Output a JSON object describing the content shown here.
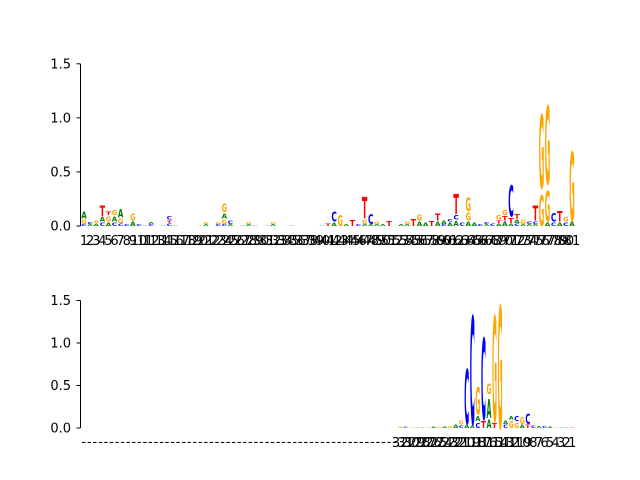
{
  "colors": {
    "A": "#008000",
    "C": "#0000ff",
    "G": "#ffa500",
    "T": "#ff0000",
    "axis": "#000000"
  },
  "chart_data": [
    {
      "type": "sequence-logo",
      "title": "",
      "xlabel": "",
      "ylabel": "",
      "ylim": [
        0,
        1.6
      ],
      "yticks": [
        0.0,
        0.5,
        1.0,
        1.5
      ],
      "ytick_labels": [
        "0.0",
        "0.5",
        "1.0",
        "1.5"
      ],
      "positions": [
        "1",
        "2",
        "3",
        "4",
        "5",
        "6",
        "7",
        "8",
        "9",
        "10",
        "11",
        "12",
        "13",
        "14",
        "15",
        "16",
        "17",
        "18",
        "19",
        "20",
        "21",
        "22",
        "23",
        "24",
        "25",
        "26",
        "27",
        "28",
        "29",
        "30",
        "31",
        "32",
        "33",
        "34",
        "35",
        "36",
        "37",
        "38",
        "39",
        "40",
        "41",
        "42",
        "43",
        "44",
        "45",
        "46",
        "47",
        "48",
        "49",
        "50",
        "51",
        "52",
        "53",
        "54",
        "55",
        "56",
        "57",
        "58",
        "59",
        "60",
        "61",
        "62",
        "63",
        "64",
        "65",
        "66",
        "67",
        "68",
        "69",
        "70",
        "71",
        "72",
        "73",
        "74",
        "75",
        "76",
        "77",
        "78",
        "79",
        "80",
        "81"
      ],
      "stacks": [
        [
          [
            "C",
            0.02
          ],
          [
            "G",
            0.05
          ],
          [
            "A",
            0.08
          ]
        ],
        [
          [
            "A",
            0.02
          ],
          [
            "C",
            0.02
          ]
        ],
        [
          [
            "A",
            0.03
          ],
          [
            "G",
            0.03
          ]
        ],
        [
          [
            "C",
            0.04
          ],
          [
            "A",
            0.05
          ],
          [
            "T",
            0.13
          ]
        ],
        [
          [
            "A",
            0.04
          ],
          [
            "G",
            0.06
          ],
          [
            "T",
            0.04
          ]
        ],
        [
          [
            "C",
            0.04
          ],
          [
            "A",
            0.06
          ],
          [
            "G",
            0.06
          ]
        ],
        [
          [
            "C",
            0.03
          ],
          [
            "G",
            0.05
          ],
          [
            "A",
            0.1
          ]
        ],
        [
          [
            "C",
            0.02
          ]
        ],
        [
          [
            "A",
            0.05
          ],
          [
            "G",
            0.08
          ]
        ],
        [
          [
            "C",
            0.02
          ]
        ],
        [
          [
            "A",
            0.01
          ]
        ],
        [
          [
            "C",
            0.02
          ],
          [
            "A",
            0.02
          ]
        ],
        [],
        [
          [
            "A",
            0.01
          ]
        ],
        [
          [
            "C",
            0.03
          ],
          [
            "T",
            0.03
          ],
          [
            "C",
            0.04
          ]
        ],
        [
          [
            "A",
            0.01
          ]
        ],
        [],
        [],
        [],
        [
          [
            "G",
            0.01
          ]
        ],
        [
          [
            "A",
            0.02
          ],
          [
            "G",
            0.02
          ]
        ],
        [],
        [
          [
            "C",
            0.02
          ],
          [
            "G",
            0.02
          ]
        ],
        [
          [
            "C",
            0.02
          ],
          [
            "G",
            0.05
          ],
          [
            "A",
            0.06
          ],
          [
            "G",
            0.1
          ]
        ],
        [
          [
            "A",
            0.02
          ],
          [
            "C",
            0.04
          ]
        ],
        [],
        [
          [
            "A",
            0.01
          ]
        ],
        [
          [
            "A",
            0.02
          ],
          [
            "G",
            0.02
          ]
        ],
        [
          [
            "C",
            0.01
          ]
        ],
        [],
        [
          [
            "A",
            0.01
          ]
        ],
        [
          [
            "A",
            0.02
          ],
          [
            "G",
            0.02
          ]
        ],
        [],
        [],
        [
          [
            "A",
            0.01
          ]
        ],
        [],
        [],
        [],
        [],
        [
          [
            "A",
            0.01
          ]
        ],
        [
          [
            "T",
            0.03
          ]
        ],
        [
          [
            "A",
            0.04
          ],
          [
            "C",
            0.11
          ]
        ],
        [
          [
            "G",
            0.13
          ]
        ],
        [
          [
            "A",
            0.02
          ]
        ],
        [
          [
            "T",
            0.07
          ]
        ],
        [
          [
            "C",
            0.02
          ]
        ],
        [
          [
            "A",
            0.02
          ],
          [
            "G",
            0.05
          ],
          [
            "T",
            0.25
          ]
        ],
        [
          [
            "A",
            0.02
          ],
          [
            "C",
            0.11
          ]
        ],
        [
          [
            "A",
            0.02
          ],
          [
            "G",
            0.03
          ]
        ],
        [
          [
            "A",
            0.02
          ]
        ],
        [
          [
            "T",
            0.06
          ]
        ],
        [],
        [
          [
            "A",
            0.02
          ]
        ],
        [
          [
            "A",
            0.02
          ],
          [
            "G",
            0.03
          ]
        ],
        [
          [
            "T",
            0.08
          ]
        ],
        [
          [
            "A",
            0.05
          ],
          [
            "G",
            0.07
          ]
        ],
        [
          [
            "A",
            0.04
          ]
        ],
        [
          [
            "T",
            0.06
          ]
        ],
        [
          [
            "A",
            0.05
          ],
          [
            "T",
            0.08
          ]
        ],
        [
          [
            "C",
            0.02
          ],
          [
            "A",
            0.04
          ]
        ],
        [
          [
            "A",
            0.04
          ],
          [
            "C",
            0.03
          ]
        ],
        [
          [
            "A",
            0.06
          ],
          [
            "C",
            0.05
          ],
          [
            "T",
            0.23
          ]
        ],
        [
          [
            "C",
            0.04
          ]
        ],
        [
          [
            "A",
            0.05
          ],
          [
            "G",
            0.09
          ],
          [
            "G",
            0.16
          ]
        ],
        [
          [
            "A",
            0.04
          ]
        ],
        [
          [
            "C",
            0.02
          ]
        ],
        [
          [
            "A",
            0.02
          ],
          [
            "C",
            0.02
          ]
        ],
        [
          [
            "C",
            0.03
          ]
        ],
        [
          [
            "A",
            0.03
          ],
          [
            "T",
            0.03
          ],
          [
            "G",
            0.05
          ]
        ],
        [
          [
            "A",
            0.05
          ],
          [
            "T",
            0.05
          ],
          [
            "G",
            0.06
          ]
        ],
        [
          [
            "A",
            0.03
          ],
          [
            "T",
            0.06
          ],
          [
            "C",
            0.36
          ]
        ],
        [
          [
            "C",
            0.03
          ],
          [
            "A",
            0.04
          ],
          [
            "T",
            0.05
          ]
        ],
        [
          [
            "A",
            0.02
          ],
          [
            "G",
            0.05
          ]
        ],
        [
          [
            "A",
            0.02
          ],
          [
            "C",
            0.03
          ]
        ],
        [
          [
            "A",
            0.02
          ],
          [
            "C",
            0.03
          ],
          [
            "T",
            0.17
          ]
        ],
        [
          [
            "G",
            0.35
          ],
          [
            "G",
            0.85
          ]
        ],
        [
          [
            "A",
            0.04
          ],
          [
            "G",
            0.35
          ],
          [
            "G",
            0.9
          ]
        ],
        [
          [
            "C",
            0.04
          ],
          [
            "C",
            0.1
          ]
        ],
        [
          [
            "A",
            0.04
          ],
          [
            "T",
            0.12
          ]
        ],
        [
          [
            "C",
            0.04
          ],
          [
            "G",
            0.05
          ]
        ],
        [
          [
            "A",
            0.05
          ],
          [
            "G",
            0.8
          ]
        ]
      ]
    },
    {
      "type": "sequence-logo",
      "title": "",
      "xlabel": "",
      "ylabel": "",
      "ylim": [
        0,
        2.0
      ],
      "yticks": [
        0.0,
        0.5,
        1.0,
        1.5
      ],
      "ytick_labels": [
        "0.0",
        "0.5",
        "1.0",
        "1.5"
      ],
      "empty_positions": 57,
      "positions": [
        "32",
        "31",
        "30",
        "29",
        "28",
        "27",
        "26",
        "25",
        "24",
        "23",
        "22",
        "21",
        "20",
        "19",
        "18",
        "17",
        "16",
        "15",
        "14",
        "13",
        "12",
        "11",
        "10",
        "9",
        "8",
        "7",
        "6",
        "5",
        "4",
        "3",
        "2",
        "1"
      ],
      "stacks": [
        [
          [
            "G",
            0.02
          ]
        ],
        [
          [
            "C",
            0.02
          ]
        ],
        [
          [
            "G",
            0.01
          ]
        ],
        [
          [
            "A",
            0.01
          ]
        ],
        [
          [
            "T",
            0.01
          ]
        ],
        [
          [
            "G",
            0.01
          ]
        ],
        [
          [
            "A",
            0.02
          ]
        ],
        [
          [
            "G",
            0.02
          ]
        ],
        [
          [
            "A",
            0.02
          ]
        ],
        [
          [
            "G",
            0.03
          ]
        ],
        [
          [
            "A",
            0.05
          ]
        ],
        [
          [
            "C",
            0.04
          ],
          [
            "G",
            0.06
          ]
        ],
        [
          [
            "A",
            0.05
          ],
          [
            "C",
            0.8
          ]
        ],
        [
          [
            "A",
            0.04
          ],
          [
            "C",
            1.6
          ]
        ],
        [
          [
            "C",
            0.08
          ],
          [
            "A",
            0.08
          ],
          [
            "G",
            0.4
          ]
        ],
        [
          [
            "T",
            0.1
          ],
          [
            "C",
            1.2
          ]
        ],
        [
          [
            "A",
            0.12
          ],
          [
            "A",
            0.28
          ],
          [
            "G",
            0.15
          ]
        ],
        [
          [
            "T",
            0.08
          ],
          [
            "G",
            1.55
          ]
        ],
        [
          [
            "G",
            1.8
          ]
        ],
        [
          [
            "C",
            0.05
          ],
          [
            "A",
            0.05
          ]
        ],
        [
          [
            "G",
            0.1
          ],
          [
            "A",
            0.05
          ]
        ],
        [
          [
            "G",
            0.08
          ],
          [
            "C",
            0.08
          ]
        ],
        [
          [
            "A",
            0.05
          ],
          [
            "G",
            0.1
          ]
        ],
        [
          [
            "T",
            0.05
          ],
          [
            "C",
            0.15
          ]
        ],
        [
          [
            "C",
            0.04
          ]
        ],
        [
          [
            "A",
            0.03
          ]
        ],
        [
          [
            "C",
            0.03
          ]
        ],
        [
          [
            "A",
            0.02
          ]
        ],
        [
          [
            "G",
            0.01
          ]
        ],
        [
          [
            "C",
            0.01
          ]
        ],
        [
          [
            "A",
            0.01
          ]
        ],
        [
          [
            "T",
            0.01
          ]
        ]
      ]
    }
  ]
}
